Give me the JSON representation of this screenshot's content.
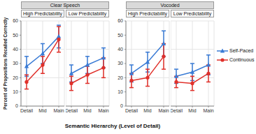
{
  "chart_data": {
    "type": "line",
    "xlabel": "Semantic Hierarchy (Level of Detail)",
    "ylabel": "Percent of Propositions Recalled Correctly",
    "categories": [
      "Detail",
      "Mid",
      "Main"
    ],
    "ylim": [
      0,
      60
    ],
    "yticks": [
      0,
      10,
      20,
      30,
      40,
      50,
      60
    ],
    "grid": true,
    "legend": "right",
    "groups": [
      {
        "title": "Clear Speech",
        "panels": [
          {
            "title": "High Predictability",
            "series": [
              {
                "name": "Self-Paced",
                "color": "#3a7bd5",
                "marker": "triangle",
                "values": [
                  28,
                  37,
                  49
                ],
                "errors": [
                  7,
                  7,
                  8
                ]
              },
              {
                "name": "Continuous",
                "color": "#e0302a",
                "marker": "circle",
                "values": [
                  17,
                  29,
                  47
                ],
                "errors": [
                  5,
                  6,
                  9
                ]
              }
            ]
          },
          {
            "title": "Low Predictability",
            "series": [
              {
                "name": "Self-Paced",
                "color": "#3a7bd5",
                "marker": "triangle",
                "values": [
                  23,
                  29,
                  34
                ],
                "errors": [
                  6,
                  6,
                  7
                ]
              },
              {
                "name": "Continuous",
                "color": "#e0302a",
                "marker": "circle",
                "values": [
                  16,
                  22,
                  27
                ],
                "errors": [
                  5,
                  6,
                  7
                ]
              }
            ]
          }
        ]
      },
      {
        "title": "Vocoded",
        "panels": [
          {
            "title": "High Predictability",
            "series": [
              {
                "name": "Self-Paced",
                "color": "#3a7bd5",
                "marker": "triangle",
                "values": [
                  23,
                  31,
                  44
                ],
                "errors": [
                  6,
                  7,
                  9
                ]
              },
              {
                "name": "Continuous",
                "color": "#e0302a",
                "marker": "circle",
                "values": [
                  18,
                  20,
                  35
                ],
                "errors": [
                  5,
                  6,
                  9
                ]
              }
            ]
          },
          {
            "title": "Low Predictability",
            "series": [
              {
                "name": "Self-Paced",
                "color": "#3a7bd5",
                "marker": "triangle",
                "values": [
                  21,
                  24,
                  29
                ],
                "errors": [
                  5,
                  6,
                  7
                ]
              },
              {
                "name": "Continuous",
                "color": "#e0302a",
                "marker": "circle",
                "values": [
                  17,
                  16,
                  23
                ],
                "errors": [
                  4,
                  5,
                  6
                ]
              }
            ]
          }
        ]
      }
    ]
  }
}
